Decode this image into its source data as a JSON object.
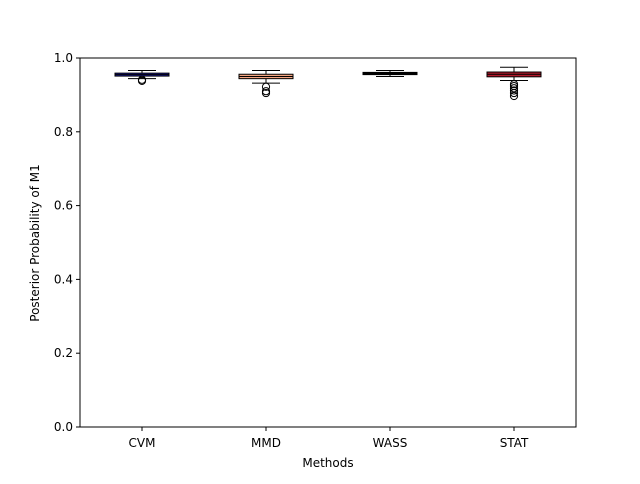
{
  "chart_data": {
    "type": "box",
    "title": "",
    "xlabel": "Methods",
    "ylabel": "Posterior Probability of M1",
    "ylim": [
      0.0,
      1.0
    ],
    "yticks": [
      0.0,
      0.2,
      0.4,
      0.6,
      0.8,
      1.0
    ],
    "ytick_labels": [
      "0.0",
      "0.2",
      "0.4",
      "0.6",
      "0.8",
      "1.0"
    ],
    "grid": false,
    "categories": [
      "CVM",
      "MMD",
      "WASS",
      "STAT"
    ],
    "boxes": [
      {
        "label": "CVM",
        "color": "#1f1fb4",
        "whislo": 0.944,
        "q1": 0.951,
        "med": 0.955,
        "q3": 0.959,
        "whishi": 0.966,
        "fliers": [
          0.938,
          0.941
        ]
      },
      {
        "label": "MMD",
        "color": "#f4a582",
        "whislo": 0.932,
        "q1": 0.944,
        "med": 0.95,
        "q3": 0.956,
        "whishi": 0.966,
        "fliers": [
          0.905,
          0.91,
          0.922
        ]
      },
      {
        "label": "WASS",
        "color": "#000000",
        "whislo": 0.95,
        "q1": 0.955,
        "med": 0.958,
        "q3": 0.961,
        "whishi": 0.966,
        "fliers": []
      },
      {
        "label": "STAT",
        "color": "#b2182b",
        "whislo": 0.939,
        "q1": 0.949,
        "med": 0.956,
        "q3": 0.962,
        "whishi": 0.975,
        "fliers": [
          0.897,
          0.905,
          0.912,
          0.918,
          0.924,
          0.929
        ]
      }
    ]
  }
}
